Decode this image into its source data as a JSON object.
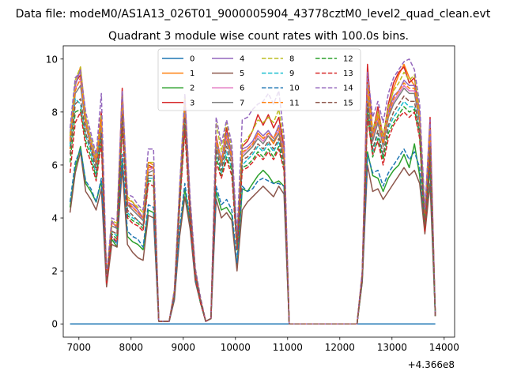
{
  "suptitle": "Data file: modeM0/AS1A13_026T01_9000005904_43778cztM0_level2_quad_clean.evt",
  "chart_data": {
    "type": "line",
    "title": "Quadrant 3 module wise count rates with 100.0s bins.",
    "xlabel": "",
    "ylabel": "",
    "x_offset_label": "+4.366e8",
    "xlim": [
      6700,
      14200
    ],
    "ylim": [
      -0.5,
      10.5
    ],
    "x_ticks": [
      7000,
      8000,
      9000,
      10000,
      11000,
      12000,
      13000,
      14000
    ],
    "y_ticks": [
      0,
      2,
      4,
      6,
      8,
      10
    ],
    "grid": false,
    "legend": {
      "location": "top-center",
      "columns": 4
    },
    "x": [
      6830,
      6930,
      7030,
      7130,
      7230,
      7330,
      7430,
      7530,
      7630,
      7730,
      7830,
      7930,
      8030,
      8130,
      8230,
      8330,
      8430,
      8530,
      8630,
      8730,
      8830,
      8930,
      9030,
      9130,
      9230,
      9330,
      9430,
      9530,
      9630,
      9730,
      9830,
      9930,
      10030,
      10130,
      10230,
      10330,
      10430,
      10530,
      10630,
      10730,
      10830,
      10930,
      11030,
      11130,
      11230,
      11330,
      11430,
      11530,
      11630,
      11730,
      11830,
      11930,
      12030,
      12130,
      12230,
      12330,
      12430,
      12530,
      12630,
      12730,
      12830,
      12930,
      13030,
      13130,
      13230,
      13330,
      13430,
      13530,
      13630,
      13730,
      13830
    ],
    "series": [
      {
        "name": "0",
        "color": "#1f77b4",
        "dash": false,
        "values": [
          0,
          0,
          0,
          0,
          0,
          0,
          0,
          0,
          0,
          0,
          0,
          0,
          0,
          0,
          0,
          0,
          0,
          0,
          0,
          0,
          0,
          0,
          0,
          0,
          0,
          0,
          0,
          0,
          0,
          0,
          0,
          0,
          0,
          0,
          0,
          0,
          0,
          0,
          0,
          0,
          0,
          0,
          0,
          0,
          0,
          0,
          0,
          0,
          0,
          0,
          0,
          0,
          0,
          0,
          0,
          0,
          0,
          0,
          0,
          0,
          0,
          0,
          0,
          0,
          0,
          0,
          0,
          0,
          0,
          0,
          0
        ]
      },
      {
        "name": "1",
        "color": "#ff7f0e",
        "dash": false,
        "values": [
          6.6,
          9.0,
          9.7,
          7.8,
          6.9,
          6.0,
          7.8,
          1.6,
          3.9,
          3.6,
          8.5,
          4.7,
          4.6,
          4.3,
          4.0,
          6.1,
          6.0,
          0.1,
          0.1,
          0.1,
          1.2,
          4.9,
          8.6,
          4.5,
          2.0,
          0.9,
          0.1,
          0.2,
          6.9,
          6.2,
          7.2,
          6.4,
          3.2,
          6.3,
          6.5,
          6.7,
          7.2,
          7.0,
          7.1,
          6.8,
          7.2,
          6.2,
          0,
          0,
          0,
          0,
          0,
          0,
          0,
          0,
          0,
          0,
          0,
          0,
          0,
          0,
          1.9,
          9.2,
          7.1,
          7.9,
          6.9,
          8.0,
          8.9,
          9.4,
          9.8,
          9.3,
          9.0,
          7.9,
          4.0,
          7.4,
          0.3
        ]
      },
      {
        "name": "2",
        "color": "#2ca02c",
        "dash": false,
        "values": [
          4.4,
          5.9,
          6.7,
          5.3,
          5.0,
          4.6,
          5.4,
          1.6,
          3.2,
          2.9,
          6.2,
          3.3,
          3.1,
          3.0,
          2.8,
          4.3,
          4.2,
          0.1,
          0.1,
          0.1,
          1.0,
          3.4,
          5.1,
          3.8,
          1.7,
          0.8,
          0.1,
          0.2,
          5.0,
          4.3,
          4.4,
          4.1,
          2.1,
          5.1,
          5.0,
          5.3,
          5.6,
          5.8,
          5.6,
          5.3,
          5.4,
          5.2,
          0,
          0,
          0,
          0,
          0,
          0,
          0,
          0,
          0,
          0,
          0,
          0,
          0,
          0,
          1.6,
          6.5,
          5.6,
          5.5,
          5.0,
          5.5,
          5.8,
          6.0,
          6.4,
          5.9,
          6.8,
          5.6,
          3.6,
          5.9,
          0.3
        ]
      },
      {
        "name": "3",
        "color": "#d62728",
        "dash": false,
        "values": [
          7.0,
          9.1,
          9.4,
          7.7,
          6.8,
          6.2,
          8.0,
          1.7,
          3.8,
          3.7,
          8.9,
          4.5,
          4.4,
          4.2,
          4.0,
          6.0,
          5.9,
          0.1,
          0.1,
          0.1,
          1.2,
          5.0,
          8.5,
          4.6,
          2.0,
          0.9,
          0.1,
          0.2,
          7.1,
          6.1,
          7.4,
          6.3,
          3.1,
          6.7,
          6.9,
          7.3,
          7.9,
          7.5,
          7.9,
          7.4,
          7.8,
          6.7,
          0,
          0,
          0,
          0,
          0,
          0,
          0,
          0,
          0,
          0,
          0,
          0,
          0,
          0,
          1.9,
          9.8,
          7.2,
          8.2,
          7.0,
          8.3,
          9.1,
          9.5,
          9.7,
          9.1,
          9.3,
          7.9,
          4.1,
          7.8,
          0.3
        ]
      },
      {
        "name": "4",
        "color": "#9467bd",
        "dash": false,
        "values": [
          7.2,
          9.0,
          9.6,
          7.7,
          7.0,
          6.1,
          7.7,
          1.7,
          3.9,
          3.6,
          8.6,
          4.6,
          4.5,
          4.3,
          4.0,
          5.9,
          5.9,
          0.1,
          0.1,
          0.1,
          1.2,
          5.0,
          8.3,
          4.6,
          2.0,
          0.9,
          0.1,
          0.2,
          7.0,
          6.2,
          7.2,
          6.5,
          3.2,
          6.6,
          6.7,
          6.9,
          7.3,
          7.1,
          7.3,
          7.0,
          7.5,
          6.5,
          0,
          0,
          0,
          0,
          0,
          0,
          0,
          0,
          0,
          0,
          0,
          0,
          0,
          0,
          1.9,
          9.0,
          7.2,
          7.8,
          6.9,
          8.0,
          8.6,
          8.8,
          9.2,
          9.0,
          9.0,
          7.8,
          4.0,
          7.3,
          0.3
        ]
      },
      {
        "name": "5",
        "color": "#8c564b",
        "dash": false,
        "values": [
          4.2,
          5.7,
          6.5,
          5.0,
          4.7,
          4.3,
          5.1,
          1.4,
          3.0,
          2.9,
          5.9,
          3.0,
          2.7,
          2.5,
          2.4,
          4.1,
          4.0,
          0.1,
          0.1,
          0.1,
          0.9,
          3.3,
          4.8,
          3.6,
          1.6,
          0.8,
          0.1,
          0.2,
          4.7,
          4.0,
          4.2,
          3.9,
          2.0,
          4.3,
          4.6,
          4.8,
          5.0,
          5.2,
          5.0,
          4.8,
          5.2,
          4.9,
          0,
          0,
          0,
          0,
          0,
          0,
          0,
          0,
          0,
          0,
          0,
          0,
          0,
          0,
          1.6,
          6.0,
          5.0,
          5.1,
          4.7,
          5.0,
          5.3,
          5.6,
          5.9,
          5.6,
          5.8,
          5.3,
          3.4,
          5.3,
          0.3
        ]
      },
      {
        "name": "6",
        "color": "#e377c2",
        "dash": false,
        "values": [
          7.0,
          8.9,
          9.2,
          7.6,
          6.8,
          6.1,
          7.7,
          1.7,
          3.8,
          3.7,
          8.4,
          4.6,
          4.4,
          4.2,
          3.9,
          5.8,
          5.9,
          0.1,
          0.1,
          0.1,
          1.2,
          4.9,
          8.2,
          4.5,
          2.0,
          0.9,
          0.1,
          0.2,
          6.9,
          6.1,
          7.0,
          6.3,
          3.1,
          6.4,
          6.6,
          6.8,
          7.1,
          6.9,
          7.2,
          7.0,
          7.3,
          6.4,
          0,
          0,
          0,
          0,
          0,
          0,
          0,
          0,
          0,
          0,
          0,
          0,
          0,
          0,
          1.9,
          8.8,
          7.0,
          7.7,
          6.8,
          7.9,
          8.4,
          8.7,
          9.0,
          8.8,
          8.8,
          7.7,
          4.0,
          7.2,
          0.3
        ]
      },
      {
        "name": "7",
        "color": "#7f7f7f",
        "dash": false,
        "values": [
          6.8,
          8.7,
          9.0,
          7.5,
          6.7,
          6.0,
          7.5,
          1.7,
          3.7,
          3.6,
          8.2,
          4.5,
          4.3,
          4.1,
          3.9,
          5.7,
          5.8,
          0.1,
          0.1,
          0.1,
          1.2,
          4.8,
          8.0,
          4.4,
          2.0,
          0.9,
          0.1,
          0.2,
          6.8,
          6.0,
          6.9,
          6.2,
          3.0,
          6.3,
          6.5,
          6.7,
          7.0,
          6.8,
          7.1,
          6.9,
          7.2,
          6.3,
          0,
          0,
          0,
          0,
          0,
          0,
          0,
          0,
          0,
          0,
          0,
          0,
          0,
          0,
          1.8,
          8.6,
          6.9,
          7.6,
          6.7,
          7.8,
          8.3,
          8.6,
          8.9,
          8.7,
          8.7,
          7.6,
          3.9,
          7.1,
          0.3
        ]
      },
      {
        "name": "8",
        "color": "#bcbd22",
        "dash": true,
        "values": [
          7.1,
          9.2,
          9.7,
          7.8,
          7.0,
          6.3,
          7.9,
          1.8,
          3.9,
          3.8,
          8.6,
          4.8,
          4.6,
          4.4,
          4.2,
          6.1,
          6.1,
          0.1,
          0.1,
          0.1,
          1.3,
          5.1,
          8.5,
          4.7,
          2.1,
          1.0,
          0.1,
          0.2,
          7.6,
          6.5,
          7.6,
          6.6,
          3.3,
          6.8,
          7.0,
          7.3,
          7.7,
          7.6,
          7.8,
          7.6,
          8.1,
          6.9,
          0,
          0,
          0,
          0,
          0,
          0,
          0,
          0,
          0,
          0,
          0,
          0,
          0,
          0,
          1.9,
          9.1,
          7.3,
          8.0,
          7.1,
          8.2,
          8.8,
          9.1,
          9.5,
          9.2,
          9.4,
          8.0,
          4.2,
          7.5,
          0.3
        ]
      },
      {
        "name": "9",
        "color": "#17becf",
        "dash": true,
        "values": [
          6.7,
          8.5,
          8.3,
          7.1,
          6.5,
          5.6,
          7.2,
          1.6,
          3.5,
          3.3,
          7.8,
          4.2,
          4.0,
          3.9,
          3.7,
          5.5,
          5.5,
          0.1,
          0.1,
          0.1,
          1.1,
          4.6,
          7.7,
          4.2,
          1.9,
          0.8,
          0.1,
          0.2,
          6.5,
          5.7,
          6.5,
          5.9,
          2.9,
          6.0,
          6.2,
          6.4,
          6.7,
          6.5,
          6.8,
          6.5,
          6.9,
          6.0,
          0,
          0,
          0,
          0,
          0,
          0,
          0,
          0,
          0,
          0,
          0,
          0,
          0,
          0,
          1.8,
          8.2,
          6.5,
          7.2,
          6.3,
          7.4,
          7.8,
          8.1,
          8.4,
          8.2,
          8.2,
          7.2,
          3.7,
          6.6,
          0.3
        ]
      },
      {
        "name": "10",
        "color": "#1f77b4",
        "dash": true,
        "values": [
          4.6,
          6.1,
          6.6,
          5.4,
          5.1,
          4.6,
          5.5,
          1.6,
          3.3,
          3.0,
          6.4,
          3.5,
          3.3,
          3.2,
          2.9,
          4.5,
          4.4,
          0.1,
          0.1,
          0.1,
          1.0,
          3.6,
          5.3,
          3.9,
          1.7,
          0.8,
          0.1,
          0.2,
          5.2,
          4.5,
          4.7,
          4.3,
          2.3,
          5.2,
          5.0,
          5.1,
          5.4,
          5.5,
          5.4,
          5.3,
          5.3,
          5.2,
          0,
          0,
          0,
          0,
          0,
          0,
          0,
          0,
          0,
          0,
          0,
          0,
          0,
          0,
          1.7,
          6.4,
          5.7,
          5.8,
          5.2,
          5.7,
          6.0,
          6.3,
          6.6,
          6.2,
          6.5,
          5.9,
          3.7,
          6.0,
          0.3
        ]
      },
      {
        "name": "11",
        "color": "#ff7f0e",
        "dash": true,
        "values": [
          6.9,
          8.8,
          9.3,
          7.6,
          6.8,
          6.1,
          7.7,
          1.7,
          3.8,
          3.7,
          8.4,
          4.6,
          4.4,
          4.2,
          4.0,
          5.9,
          5.9,
          0.1,
          0.1,
          0.1,
          1.2,
          4.9,
          8.3,
          4.5,
          2.0,
          0.9,
          0.1,
          0.2,
          7.0,
          6.1,
          7.1,
          6.3,
          3.1,
          6.5,
          6.6,
          6.8,
          7.2,
          7.0,
          7.2,
          7.0,
          7.4,
          6.4,
          0,
          0,
          0,
          0,
          0,
          0,
          0,
          0,
          0,
          0,
          0,
          0,
          0,
          0,
          1.9,
          8.9,
          7.1,
          7.8,
          6.8,
          7.9,
          8.5,
          8.8,
          9.1,
          8.9,
          8.9,
          7.8,
          4.0,
          7.2,
          0.3
        ]
      },
      {
        "name": "12",
        "color": "#2ca02c",
        "dash": true,
        "values": [
          6.1,
          8.0,
          8.1,
          6.9,
          6.3,
          5.5,
          7.0,
          1.6,
          3.4,
          3.2,
          7.6,
          4.1,
          3.9,
          3.8,
          3.6,
          5.4,
          5.4,
          0.1,
          0.1,
          0.1,
          1.1,
          4.5,
          7.5,
          4.1,
          1.8,
          0.8,
          0.1,
          0.2,
          6.3,
          5.6,
          6.3,
          5.8,
          2.8,
          5.9,
          6.0,
          6.2,
          6.5,
          6.3,
          6.6,
          6.3,
          6.7,
          5.9,
          0,
          0,
          0,
          0,
          0,
          0,
          0,
          0,
          0,
          0,
          0,
          0,
          0,
          0,
          1.8,
          8.0,
          6.3,
          7.0,
          6.2,
          7.2,
          7.6,
          7.9,
          8.2,
          8.0,
          8.1,
          7.1,
          3.6,
          6.5,
          0.3
        ]
      },
      {
        "name": "13",
        "color": "#d62728",
        "dash": true,
        "values": [
          5.7,
          7.6,
          8.0,
          6.7,
          6.1,
          5.4,
          6.8,
          1.5,
          3.3,
          3.1,
          7.4,
          4.0,
          3.8,
          3.7,
          3.5,
          5.3,
          5.2,
          0.1,
          0.1,
          0.1,
          1.1,
          4.4,
          7.3,
          4.0,
          1.8,
          0.8,
          0.1,
          0.2,
          6.1,
          5.5,
          6.2,
          5.6,
          2.8,
          5.8,
          5.9,
          6.1,
          6.4,
          6.2,
          6.5,
          6.2,
          6.6,
          5.8,
          0,
          0,
          0,
          0,
          0,
          0,
          0,
          0,
          0,
          0,
          0,
          0,
          0,
          0,
          1.8,
          7.8,
          6.4,
          6.9,
          6.0,
          7.0,
          7.5,
          7.8,
          8.0,
          7.8,
          8.0,
          7.0,
          3.5,
          6.4,
          0.3
        ]
      },
      {
        "name": "14",
        "color": "#9467bd",
        "dash": true,
        "values": [
          7.4,
          9.3,
          9.5,
          8.0,
          7.2,
          6.4,
          8.7,
          1.8,
          4.0,
          3.9,
          8.8,
          4.9,
          4.8,
          4.5,
          4.3,
          6.6,
          6.6,
          0.1,
          0.1,
          0.1,
          1.3,
          5.2,
          8.7,
          4.8,
          2.1,
          1.0,
          0.1,
          0.2,
          7.8,
          6.8,
          7.7,
          6.8,
          3.4,
          7.7,
          7.8,
          8.1,
          8.3,
          8.4,
          8.7,
          8.3,
          8.8,
          7.1,
          0,
          0,
          0,
          0,
          0,
          0,
          0,
          0,
          0,
          0,
          0,
          0,
          0,
          0,
          2.0,
          9.5,
          7.8,
          8.4,
          7.6,
          8.7,
          9.3,
          9.6,
          9.9,
          10.0,
          9.6,
          8.3,
          4.3,
          7.7,
          0.3
        ]
      },
      {
        "name": "15",
        "color": "#8c564b",
        "dash": true,
        "values": [
          6.4,
          8.3,
          8.5,
          7.2,
          6.6,
          5.8,
          7.2,
          1.6,
          3.5,
          3.4,
          7.9,
          4.3,
          4.1,
          3.9,
          3.7,
          5.6,
          5.6,
          0.1,
          0.1,
          0.1,
          1.1,
          4.7,
          7.8,
          4.3,
          1.9,
          0.9,
          0.1,
          0.2,
          6.6,
          5.8,
          6.7,
          6.0,
          2.9,
          6.2,
          6.3,
          6.5,
          6.8,
          6.6,
          6.9,
          6.6,
          7.0,
          6.1,
          0,
          0,
          0,
          0,
          0,
          0,
          0,
          0,
          0,
          0,
          0,
          0,
          0,
          0,
          1.8,
          8.3,
          6.6,
          7.3,
          6.4,
          7.5,
          8.0,
          8.3,
          8.6,
          8.4,
          8.4,
          7.3,
          3.7,
          6.7,
          0.3
        ]
      }
    ]
  }
}
